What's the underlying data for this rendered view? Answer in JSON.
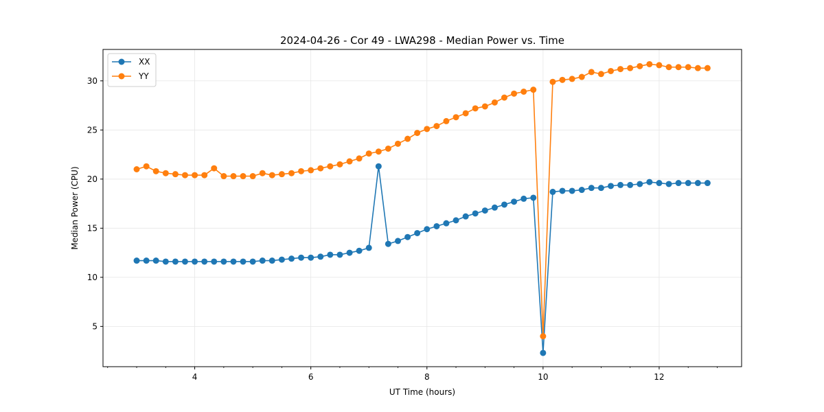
{
  "chart_data": {
    "type": "line",
    "title": "2024-04-26 - Cor 49 - LWA298 - Median Power vs. Time",
    "xlabel": "UT Time (hours)",
    "ylabel": "Median Power (CPU)",
    "xlim": [
      2.42,
      13.42
    ],
    "ylim": [
      0.9,
      33.2
    ],
    "xticks": [
      4,
      6,
      8,
      10,
      12
    ],
    "xtick_labels": [
      "4",
      "6",
      "8",
      "10",
      "12"
    ],
    "xminor_step": 0.5,
    "yticks": [
      5,
      10,
      15,
      20,
      25,
      30
    ],
    "ytick_labels": [
      "5",
      "10",
      "15",
      "20",
      "25",
      "30"
    ],
    "grid": true,
    "legend_position": "top-left",
    "x": [
      3.0,
      3.167,
      3.333,
      3.5,
      3.667,
      3.833,
      4.0,
      4.167,
      4.333,
      4.5,
      4.667,
      4.833,
      5.0,
      5.167,
      5.333,
      5.5,
      5.667,
      5.833,
      6.0,
      6.167,
      6.333,
      6.5,
      6.667,
      6.833,
      7.0,
      7.167,
      7.333,
      7.5,
      7.667,
      7.833,
      8.0,
      8.167,
      8.333,
      8.5,
      8.667,
      8.833,
      9.0,
      9.167,
      9.333,
      9.5,
      9.667,
      9.833,
      10.0,
      10.167,
      10.333,
      10.5,
      10.667,
      10.833,
      11.0,
      11.167,
      11.333,
      11.5,
      11.667,
      11.833,
      12.0,
      12.167,
      12.333,
      12.5,
      12.667,
      12.833
    ],
    "series": [
      {
        "name": "XX",
        "color": "#1f77b4",
        "values": [
          11.7,
          11.7,
          11.7,
          11.6,
          11.6,
          11.6,
          11.6,
          11.6,
          11.6,
          11.6,
          11.6,
          11.6,
          11.6,
          11.7,
          11.7,
          11.8,
          11.9,
          12.0,
          12.0,
          12.1,
          12.3,
          12.3,
          12.5,
          12.7,
          13.0,
          21.3,
          13.4,
          13.7,
          14.1,
          14.5,
          14.9,
          15.2,
          15.5,
          15.8,
          16.2,
          16.5,
          16.8,
          17.1,
          17.4,
          17.7,
          18.0,
          18.1,
          2.3,
          18.7,
          18.8,
          18.8,
          18.9,
          19.1,
          19.1,
          19.3,
          19.4,
          19.4,
          19.5,
          19.7,
          19.6,
          19.5,
          19.6,
          19.6,
          19.6,
          19.6
        ]
      },
      {
        "name": "YY",
        "color": "#ff7f0e",
        "values": [
          21.0,
          21.3,
          20.8,
          20.6,
          20.5,
          20.4,
          20.4,
          20.4,
          21.1,
          20.3,
          20.3,
          20.3,
          20.3,
          20.6,
          20.4,
          20.5,
          20.6,
          20.8,
          20.9,
          21.1,
          21.3,
          21.5,
          21.8,
          22.1,
          22.6,
          22.8,
          23.1,
          23.6,
          24.1,
          24.7,
          25.1,
          25.4,
          25.9,
          26.3,
          26.7,
          27.2,
          27.4,
          27.8,
          28.3,
          28.7,
          28.9,
          29.1,
          4.0,
          29.9,
          30.1,
          30.2,
          30.4,
          30.9,
          30.7,
          31.0,
          31.2,
          31.3,
          31.5,
          31.7,
          31.6,
          31.4,
          31.4,
          31.4,
          31.3,
          31.3
        ]
      }
    ]
  }
}
